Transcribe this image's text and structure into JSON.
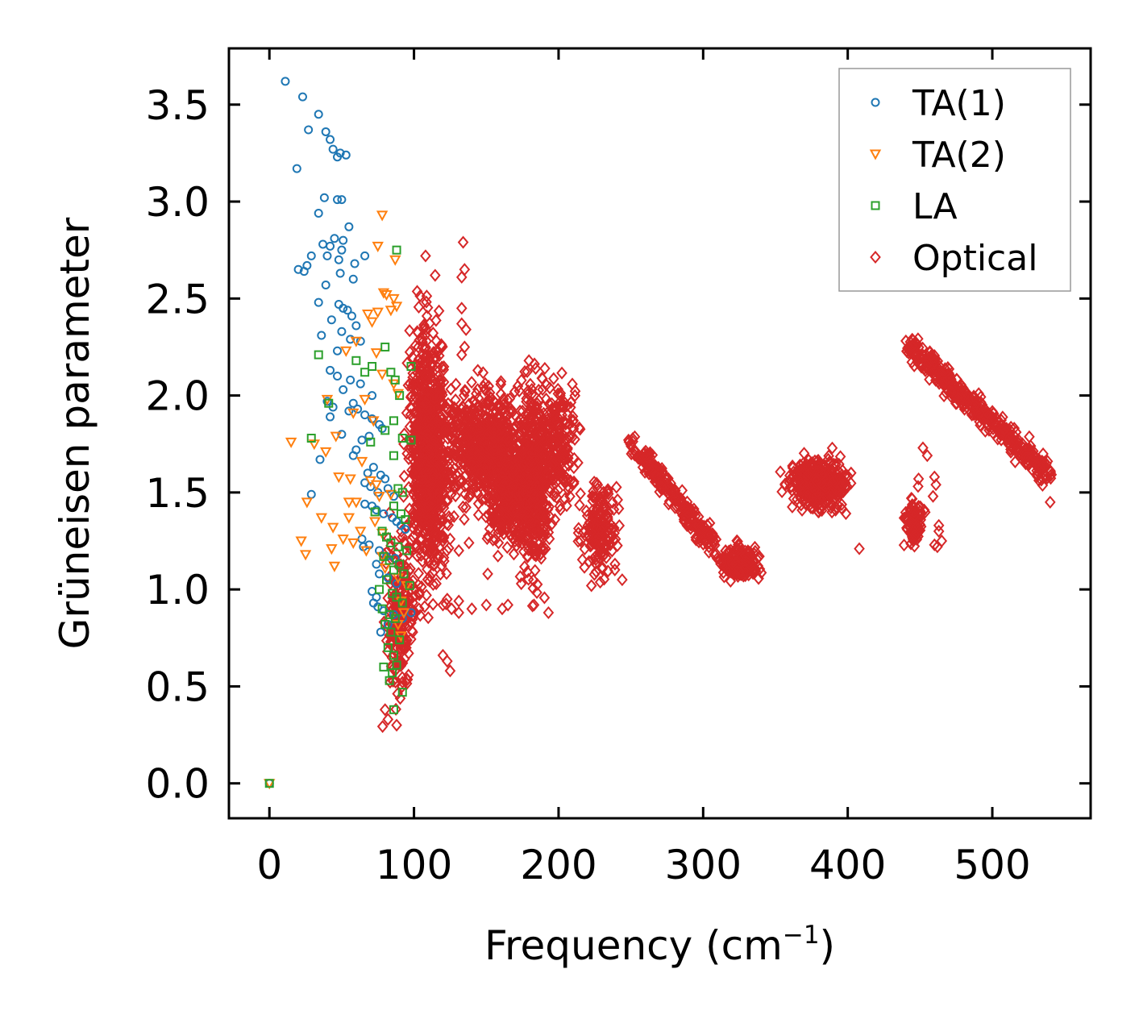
{
  "chart_data": {
    "type": "scatter",
    "title": "",
    "xlabel": {
      "base": "Frequency (cm",
      "exponent": "−1",
      "close": ")"
    },
    "ylabel": "Grüneisen parameter",
    "xlim": [
      -28,
      568
    ],
    "ylim": [
      -0.18,
      3.79
    ],
    "xticks": [
      0,
      100,
      200,
      300,
      400,
      500
    ],
    "xtick_labels": [
      "0",
      "100",
      "200",
      "300",
      "400",
      "500"
    ],
    "yticks": [
      0.0,
      0.5,
      1.0,
      1.5,
      2.0,
      2.5,
      3.0,
      3.5
    ],
    "ytick_labels": [
      "0.0",
      "0.5",
      "1.0",
      "1.5",
      "2.0",
      "2.5",
      "3.0",
      "3.5"
    ],
    "grid": false,
    "legend_position": "top-right",
    "series": [
      {
        "name": "TA(1)",
        "color": "#1f77b4",
        "marker": "circle",
        "points": [
          [
            0,
            0
          ],
          [
            11,
            3.62
          ],
          [
            23,
            3.54
          ],
          [
            34,
            3.45
          ],
          [
            27,
            3.37
          ],
          [
            39,
            3.36
          ],
          [
            42,
            3.32
          ],
          [
            44,
            3.27
          ],
          [
            49,
            3.25
          ],
          [
            53,
            3.24
          ],
          [
            47,
            3.23
          ],
          [
            19,
            3.17
          ],
          [
            38,
            3.02
          ],
          [
            47,
            3.01
          ],
          [
            50,
            3.01
          ],
          [
            34,
            2.94
          ],
          [
            55,
            2.87
          ],
          [
            45,
            2.81
          ],
          [
            51,
            2.8
          ],
          [
            37,
            2.78
          ],
          [
            42,
            2.77
          ],
          [
            50,
            2.75
          ],
          [
            29,
            2.72
          ],
          [
            40,
            2.72
          ],
          [
            66,
            2.72
          ],
          [
            48,
            2.7
          ],
          [
            59,
            2.68
          ],
          [
            26,
            2.67
          ],
          [
            20,
            2.65
          ],
          [
            24,
            2.64
          ],
          [
            49,
            2.63
          ],
          [
            58,
            2.6
          ],
          [
            39,
            2.57
          ],
          [
            34,
            2.48
          ],
          [
            48,
            2.47
          ],
          [
            51,
            2.45
          ],
          [
            54,
            2.44
          ],
          [
            57,
            2.41
          ],
          [
            60,
            2.36
          ],
          [
            43,
            2.39
          ],
          [
            50,
            2.33
          ],
          [
            36,
            2.31
          ],
          [
            56,
            2.29
          ],
          [
            63,
            2.28
          ],
          [
            47,
            2.23
          ],
          [
            42,
            2.13
          ],
          [
            47,
            2.1
          ],
          [
            56,
            2.08
          ],
          [
            63,
            2.06
          ],
          [
            71,
            2.0
          ],
          [
            51,
            2.03
          ],
          [
            40,
            1.97
          ],
          [
            44,
            1.94
          ],
          [
            58,
            1.96
          ],
          [
            61,
            1.93
          ],
          [
            55,
            1.92
          ],
          [
            66,
            1.9
          ],
          [
            71,
            1.88
          ],
          [
            76,
            1.85
          ],
          [
            78,
            1.83
          ],
          [
            42,
            1.89
          ],
          [
            50,
            1.8
          ],
          [
            69,
            1.79
          ],
          [
            64,
            1.77
          ],
          [
            60,
            1.72
          ],
          [
            58,
            1.69
          ],
          [
            35,
            1.67
          ],
          [
            72,
            1.63
          ],
          [
            68,
            1.6
          ],
          [
            77,
            1.59
          ],
          [
            80,
            1.57
          ],
          [
            66,
            1.55
          ],
          [
            70,
            1.53
          ],
          [
            82,
            1.52
          ],
          [
            75,
            1.5
          ],
          [
            29,
            1.49
          ],
          [
            86,
            1.48
          ],
          [
            66,
            1.44
          ],
          [
            71,
            1.43
          ],
          [
            74,
            1.41
          ],
          [
            79,
            1.39
          ],
          [
            85,
            1.37
          ],
          [
            88,
            1.35
          ],
          [
            91,
            1.33
          ],
          [
            94,
            1.31
          ],
          [
            64,
            1.26
          ],
          [
            69,
            1.23
          ],
          [
            65,
            1.22
          ],
          [
            76,
            1.2
          ],
          [
            81,
            1.17
          ],
          [
            87,
            1.16
          ],
          [
            74,
            1.13
          ],
          [
            76,
            1.08
          ],
          [
            82,
            1.06
          ],
          [
            88,
            1.03
          ],
          [
            71,
            0.99
          ],
          [
            74,
            0.96
          ],
          [
            72,
            0.93
          ],
          [
            75,
            0.91
          ],
          [
            79,
            0.89
          ],
          [
            86,
            0.87
          ],
          [
            92,
            0.85
          ],
          [
            98,
            0.88
          ],
          [
            82,
            0.82
          ],
          [
            77,
            0.78
          ]
        ]
      },
      {
        "name": "TA(2)",
        "color": "#ff7f0e",
        "marker": "triangle-down",
        "points": [
          [
            0,
            0
          ],
          [
            78,
            2.93
          ],
          [
            75,
            2.77
          ],
          [
            87,
            2.7
          ],
          [
            79,
            2.53
          ],
          [
            81,
            2.52
          ],
          [
            86,
            2.5
          ],
          [
            88,
            2.46
          ],
          [
            75,
            2.43
          ],
          [
            84,
            2.44
          ],
          [
            68,
            2.42
          ],
          [
            71,
            2.38
          ],
          [
            60,
            2.28
          ],
          [
            74,
            2.22
          ],
          [
            53,
            2.23
          ],
          [
            78,
            2.11
          ],
          [
            66,
            1.98
          ],
          [
            86,
            2.06
          ],
          [
            89,
            2.01
          ],
          [
            40,
            1.98
          ],
          [
            58,
            1.91
          ],
          [
            72,
            1.87
          ],
          [
            15,
            1.76
          ],
          [
            31,
            1.75
          ],
          [
            46,
            1.79
          ],
          [
            39,
            1.71
          ],
          [
            64,
            1.66
          ],
          [
            48,
            1.58
          ],
          [
            56,
            1.57
          ],
          [
            70,
            1.56
          ],
          [
            74,
            1.54
          ],
          [
            84,
            1.49
          ],
          [
            55,
            1.45
          ],
          [
            26,
            1.45
          ],
          [
            60,
            1.45
          ],
          [
            76,
            1.48
          ],
          [
            36,
            1.37
          ],
          [
            55,
            1.37
          ],
          [
            73,
            1.35
          ],
          [
            44,
            1.32
          ],
          [
            63,
            1.3
          ],
          [
            78,
            1.29
          ],
          [
            51,
            1.26
          ],
          [
            58,
            1.24
          ],
          [
            22,
            1.25
          ],
          [
            25,
            1.18
          ],
          [
            43,
            1.21
          ],
          [
            67,
            1.2
          ],
          [
            78,
            1.17
          ],
          [
            45,
            1.12
          ],
          [
            80,
            1.11
          ],
          [
            89,
            1.06
          ],
          [
            95,
            1.02
          ],
          [
            91,
            0.94
          ],
          [
            93,
            0.88
          ],
          [
            89,
            0.82
          ],
          [
            91,
            0.76
          ]
        ]
      },
      {
        "name": "LA",
        "color": "#2ca02c",
        "marker": "square",
        "points": [
          [
            0,
            0
          ],
          [
            88,
            2.75
          ],
          [
            80,
            2.25
          ],
          [
            34,
            2.21
          ],
          [
            60,
            2.18
          ],
          [
            71,
            2.15
          ],
          [
            98,
            2.15
          ],
          [
            66,
            2.12
          ],
          [
            84,
            2.12
          ],
          [
            87,
            2.08
          ],
          [
            90,
            2.0
          ],
          [
            41,
            1.96
          ],
          [
            86,
            1.87
          ],
          [
            80,
            1.82
          ],
          [
            29,
            1.78
          ],
          [
            92,
            1.78
          ],
          [
            98,
            1.77
          ],
          [
            70,
            1.76
          ],
          [
            86,
            1.69
          ],
          [
            89,
            1.52
          ],
          [
            92,
            1.5
          ],
          [
            73,
            1.4
          ],
          [
            86,
            1.43
          ],
          [
            91,
            1.39
          ],
          [
            94,
            1.36
          ],
          [
            78,
            1.3
          ],
          [
            81,
            1.27
          ],
          [
            84,
            1.24
          ],
          [
            89,
            1.22
          ],
          [
            95,
            1.2
          ],
          [
            79,
            1.17
          ],
          [
            83,
            1.15
          ],
          [
            90,
            1.13
          ],
          [
            86,
            1.1
          ],
          [
            93,
            1.08
          ],
          [
            81,
            1.05
          ],
          [
            97,
            1.02
          ],
          [
            76,
            1.0
          ],
          [
            85,
            0.98
          ],
          [
            88,
            0.96
          ],
          [
            92,
            0.93
          ],
          [
            78,
            0.9
          ],
          [
            83,
            0.87
          ],
          [
            87,
            0.85
          ],
          [
            80,
            0.82
          ],
          [
            84,
            0.78
          ],
          [
            90,
            0.74
          ],
          [
            82,
            0.7
          ],
          [
            86,
            0.66
          ],
          [
            88,
            0.61
          ],
          [
            79,
            0.6
          ],
          [
            85,
            0.57
          ],
          [
            83,
            0.53
          ],
          [
            92,
            0.47
          ],
          [
            86,
            0.38
          ]
        ]
      },
      {
        "name": "Optical",
        "color": "#d62728",
        "marker": "diamond",
        "outliers": [
          [
            108,
            2.72
          ],
          [
            134,
            2.79
          ],
          [
            135,
            2.65
          ],
          [
            133,
            2.61
          ],
          [
            133,
            2.45
          ],
          [
            133,
            2.37
          ],
          [
            136,
            2.34
          ],
          [
            135,
            2.25
          ],
          [
            133,
            2.21
          ],
          [
            103,
            1.3
          ],
          [
            125,
            1.26
          ],
          [
            131,
            1.2
          ],
          [
            138,
            1.24
          ],
          [
            151,
            1.08
          ],
          [
            123,
            0.95
          ],
          [
            120,
            0.92
          ],
          [
            131,
            0.94
          ],
          [
            140,
            0.9
          ],
          [
            150,
            0.92
          ],
          [
            126,
            0.9
          ],
          [
            131,
            0.88
          ],
          [
            161,
            0.9
          ],
          [
            165,
            0.92
          ],
          [
            183,
            0.92
          ],
          [
            193,
            0.88
          ],
          [
            120,
            0.66
          ],
          [
            123,
            0.63
          ],
          [
            125,
            0.58
          ],
          [
            244,
            1.05
          ],
          [
            408,
            1.21
          ],
          [
            452,
            1.73
          ],
          [
            455,
            1.69
          ],
          [
            449,
            1.57
          ],
          [
            460,
            1.58
          ],
          [
            461,
            1.54
          ],
          [
            459,
            1.48
          ],
          [
            463,
            1.33
          ],
          [
            463,
            1.3
          ],
          [
            460,
            1.23
          ],
          [
            465,
            1.25
          ],
          [
            462,
            1.22
          ],
          [
            444,
            1.39
          ],
          [
            448,
            1.42
          ],
          [
            540,
            1.45
          ],
          [
            88,
            0.3
          ],
          [
            82,
            0.33
          ],
          [
            80,
            0.38
          ]
        ],
        "clusters": [
          {
            "cx": 110,
            "cy": 1.7,
            "sx": 12,
            "sy": 0.55,
            "n": 900
          },
          {
            "cx": 90,
            "cy": 0.85,
            "sx": 9,
            "sy": 0.35,
            "n": 220
          },
          {
            "cx": 145,
            "cy": 1.75,
            "sx": 20,
            "sy": 0.25,
            "n": 500
          },
          {
            "cx": 165,
            "cy": 1.55,
            "sx": 15,
            "sy": 0.3,
            "n": 450
          },
          {
            "cx": 183,
            "cy": 1.55,
            "sx": 10,
            "sy": 0.42,
            "n": 450
          },
          {
            "cx": 200,
            "cy": 1.75,
            "sx": 12,
            "sy": 0.25,
            "n": 220
          },
          {
            "cx": 228,
            "cy": 1.3,
            "sx": 11,
            "sy": 0.2,
            "n": 180
          },
          {
            "cx": 325,
            "cy": 1.14,
            "sx": 12,
            "sy": 0.07,
            "n": 220
          },
          {
            "cx": 380,
            "cy": 1.55,
            "sx": 17,
            "sy": 0.11,
            "n": 420
          },
          {
            "cx": 446,
            "cy": 1.35,
            "sx": 6,
            "sy": 0.11,
            "n": 80
          }
        ],
        "bands": [
          {
            "x1": 250,
            "y1": 1.75,
            "x2": 308,
            "y2": 1.22,
            "sx": 3,
            "sy": 0.06,
            "n": 240
          },
          {
            "x1": 442,
            "y1": 2.26,
            "x2": 540,
            "y2": 1.58,
            "sx": 3,
            "sy": 0.06,
            "n": 420
          }
        ]
      }
    ]
  }
}
